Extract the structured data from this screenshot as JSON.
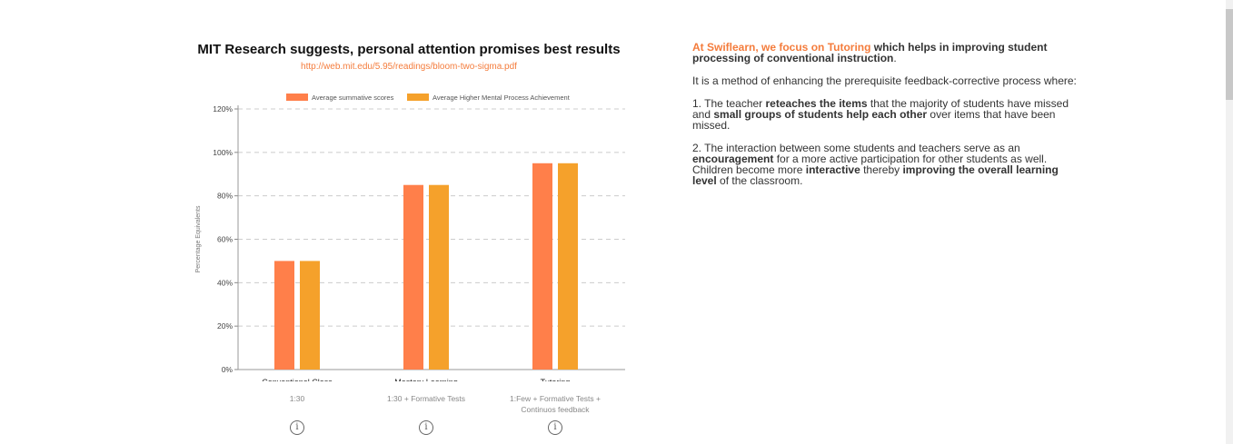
{
  "chart_title": "MIT Research suggests, personal attention promises best results",
  "chart_link": "http://web.mit.edu/5.95/readings/bloom-two-sigma.pdf",
  "chart_data": {
    "type": "bar",
    "title": "MIT Research suggests, personal attention promises best results",
    "xlabel": "",
    "ylabel": "Percentage Equivalents",
    "ylim": [
      0,
      120
    ],
    "yticks": [
      0,
      20,
      40,
      60,
      80,
      100,
      120
    ],
    "ytick_labels": [
      "0%",
      "20%",
      "40%",
      "60%",
      "80%",
      "100%",
      "120%"
    ],
    "categories": [
      "Conventional Class",
      "Mastery Learning",
      "Tutoring"
    ],
    "category_notes": [
      "1:30",
      "1:30 + Formative Tests",
      "1:Few + Formative Tests + Continuos feedback"
    ],
    "series": [
      {
        "name": "Average summative scores",
        "values": [
          50,
          85,
          95
        ],
        "color": "#ff7f4a"
      },
      {
        "name": "Average Higher Mental Process Achievement",
        "values": [
          50,
          85,
          95
        ],
        "color": "#f5a12b"
      }
    ],
    "grid": true,
    "legend_position": "top"
  },
  "info_icon": "info-icon",
  "right": {
    "p1_accent": "At Swiflearn, we focus on Tutoring",
    "p1_bold": " which helps in improving student processing of conventional instruction",
    "p1_end": ".",
    "p2": "It is a method of enhancing the prerequisite feedback-corrective process where:",
    "p3_a": "1. The teacher ",
    "p3_b": "reteaches the items",
    "p3_c": " that the majority of students have missed and ",
    "p3_d": "small groups of students help each other",
    "p3_e": " over items that have been missed.",
    "p4_a": "2. The interaction between some students and teachers serve as an ",
    "p4_b": "encouragement",
    "p4_c": " for a more active participation for other students as well. Children become more ",
    "p4_d": "interactive",
    "p4_e": " thereby ",
    "p4_f": "improving the overall learning level",
    "p4_g": " of the classroom."
  }
}
